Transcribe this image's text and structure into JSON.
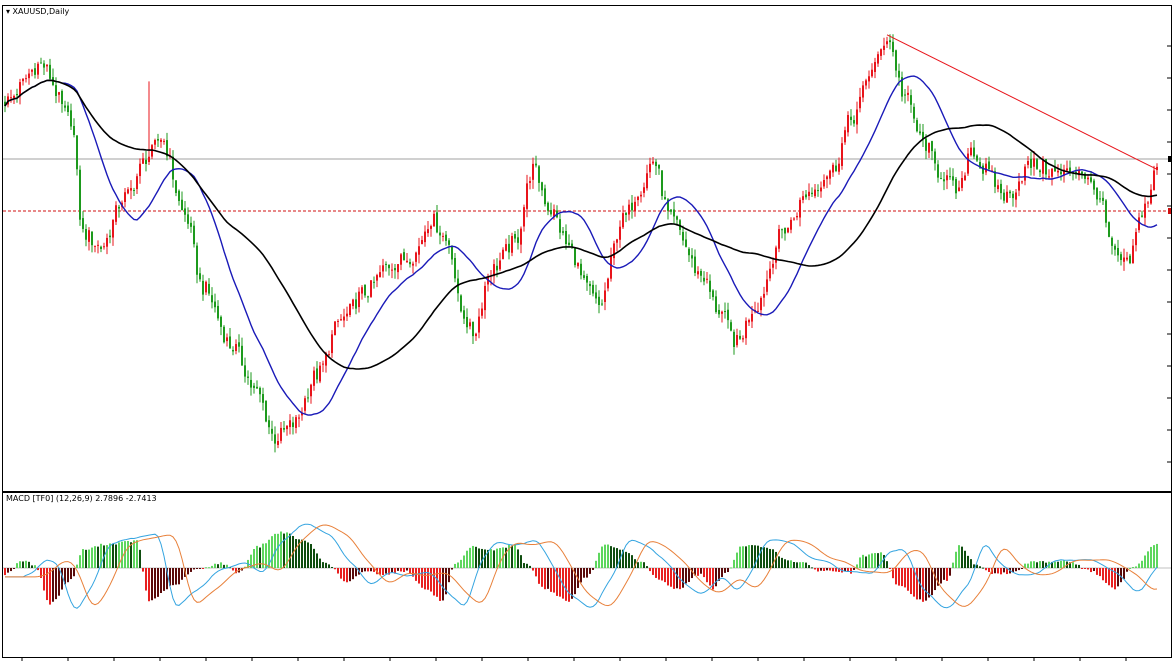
{
  "main_label": "▾ XAUUSD,Daily",
  "macd_label": "MACD [TF0] (12,26,9) 2.7896 -2.7413",
  "colors": {
    "bull": "#e8141b",
    "bear": "#1d9a1d",
    "fast_ma": "#1a1ab8",
    "slow_ma": "#000000",
    "trendline": "#e8141b",
    "hist_up_strong": "#5ed65e",
    "hist_up_weak": "#0f4d0f",
    "hist_down_strong": "#e82020",
    "hist_down_weak": "#5a0a0a",
    "macd_line": "#34a4e0",
    "signal_line": "#e8803a"
  },
  "chart_data": {
    "type": "candlestick",
    "title": "XAUUSD,Daily",
    "price_anchors": [
      [
        0,
        0.84
      ],
      [
        12,
        0.92
      ],
      [
        22,
        0.8
      ],
      [
        26,
        0.55
      ],
      [
        32,
        0.52
      ],
      [
        40,
        0.63
      ],
      [
        48,
        0.72
      ],
      [
        52,
        0.76
      ],
      [
        60,
        0.59
      ],
      [
        66,
        0.43
      ],
      [
        76,
        0.3
      ],
      [
        84,
        0.2
      ],
      [
        90,
        0.1
      ],
      [
        96,
        0.13
      ],
      [
        104,
        0.24
      ],
      [
        112,
        0.36
      ],
      [
        120,
        0.42
      ],
      [
        128,
        0.48
      ],
      [
        136,
        0.5
      ],
      [
        142,
        0.58
      ],
      [
        148,
        0.53
      ],
      [
        152,
        0.38
      ],
      [
        156,
        0.33
      ],
      [
        162,
        0.47
      ],
      [
        170,
        0.53
      ],
      [
        176,
        0.69
      ],
      [
        182,
        0.6
      ],
      [
        188,
        0.52
      ],
      [
        194,
        0.43
      ],
      [
        198,
        0.39
      ],
      [
        206,
        0.58
      ],
      [
        212,
        0.65
      ],
      [
        216,
        0.71
      ],
      [
        222,
        0.58
      ],
      [
        232,
        0.46
      ],
      [
        238,
        0.38
      ],
      [
        244,
        0.31
      ],
      [
        250,
        0.39
      ],
      [
        260,
        0.56
      ],
      [
        268,
        0.64
      ],
      [
        276,
        0.69
      ],
      [
        282,
        0.8
      ],
      [
        290,
        0.92
      ],
      [
        294,
        0.98
      ],
      [
        300,
        0.85
      ],
      [
        306,
        0.75
      ],
      [
        312,
        0.68
      ],
      [
        318,
        0.64
      ],
      [
        322,
        0.74
      ],
      [
        326,
        0.69
      ],
      [
        334,
        0.63
      ],
      [
        342,
        0.7
      ],
      [
        352,
        0.68
      ],
      [
        358,
        0.69
      ],
      [
        364,
        0.64
      ],
      [
        370,
        0.5
      ],
      [
        374,
        0.48
      ],
      [
        380,
        0.61
      ],
      [
        384,
        0.69
      ]
    ],
    "macd_anchors": [
      [
        0,
        -0.1
      ],
      [
        6,
        0.12
      ],
      [
        10,
        0.05
      ],
      [
        15,
        -0.6
      ],
      [
        22,
        -0.2
      ],
      [
        26,
        0.3
      ],
      [
        34,
        0.4
      ],
      [
        44,
        0.45
      ],
      [
        48,
        -0.55
      ],
      [
        56,
        -0.3
      ],
      [
        64,
        -0.02
      ],
      [
        72,
        0.08
      ],
      [
        78,
        -0.08
      ],
      [
        84,
        0.35
      ],
      [
        92,
        0.6
      ],
      [
        100,
        0.45
      ],
      [
        108,
        0.05
      ],
      [
        114,
        -0.25
      ],
      [
        120,
        -0.05
      ],
      [
        126,
        -0.1
      ],
      [
        134,
        -0.05
      ],
      [
        140,
        -0.35
      ],
      [
        146,
        -0.55
      ],
      [
        150,
        0.05
      ],
      [
        156,
        0.35
      ],
      [
        162,
        0.3
      ],
      [
        170,
        0.38
      ],
      [
        174,
        0.05
      ],
      [
        180,
        -0.35
      ],
      [
        188,
        -0.55
      ],
      [
        194,
        -0.15
      ],
      [
        200,
        0.38
      ],
      [
        206,
        0.3
      ],
      [
        212,
        0.1
      ],
      [
        218,
        -0.2
      ],
      [
        224,
        -0.35
      ],
      [
        232,
        -0.1
      ],
      [
        236,
        -0.35
      ],
      [
        240,
        -0.1
      ],
      [
        246,
        0.38
      ],
      [
        254,
        0.35
      ],
      [
        260,
        0.15
      ],
      [
        266,
        0.08
      ],
      [
        272,
        -0.05
      ],
      [
        276,
        -0.05
      ],
      [
        282,
        -0.08
      ],
      [
        286,
        0.2
      ],
      [
        292,
        0.25
      ],
      [
        298,
        -0.3
      ],
      [
        306,
        -0.55
      ],
      [
        314,
        -0.2
      ],
      [
        318,
        0.38
      ],
      [
        324,
        0.05
      ],
      [
        330,
        -0.1
      ],
      [
        336,
        -0.08
      ],
      [
        342,
        0.1
      ],
      [
        354,
        0.12
      ],
      [
        362,
        -0.05
      ],
      [
        370,
        -0.35
      ],
      [
        376,
        0.02
      ],
      [
        384,
        0.4
      ]
    ],
    "trendline": {
      "from": [
        294,
        0.985
      ],
      "to": [
        384,
        0.69
      ]
    }
  }
}
